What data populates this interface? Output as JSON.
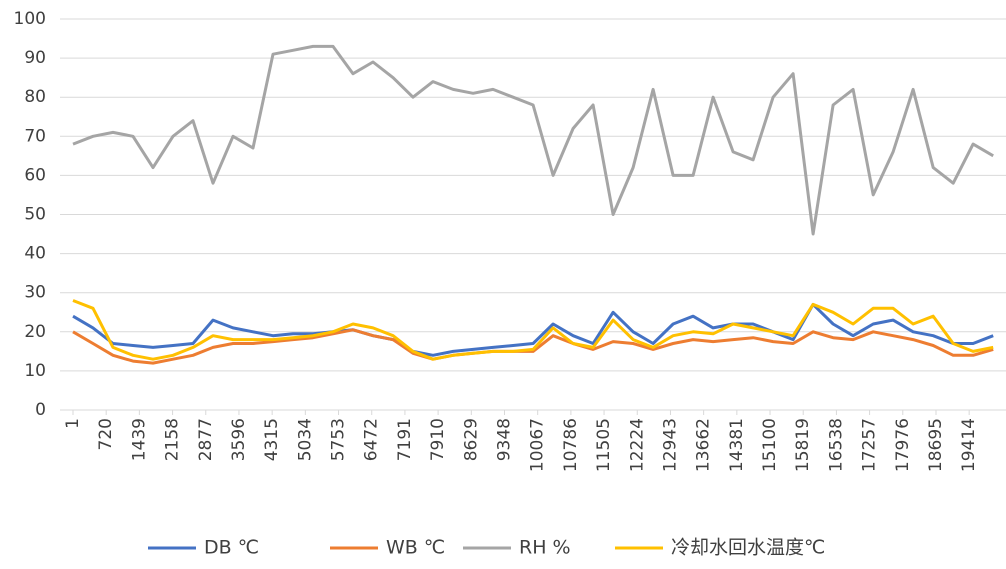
{
  "chart_data": {
    "type": "line",
    "x": [
      1,
      434,
      867,
      1301,
      1734,
      2167,
      2601,
      3034,
      3467,
      3901,
      4334,
      4767,
      5200,
      5634,
      6067,
      6500,
      6934,
      7367,
      7800,
      8234,
      8667,
      9100,
      9534,
      9967,
      10400,
      10834,
      11267,
      11700,
      12134,
      12567,
      13000,
      13434,
      13867,
      14300,
      14734,
      15167,
      15600,
      16034,
      16467,
      16900,
      17334,
      17767,
      18200,
      18634,
      19067,
      19500,
      19934
    ],
    "xlim": [
      1,
      20190
    ],
    "xticks": [
      1,
      720,
      1439,
      2158,
      2877,
      3596,
      4315,
      5034,
      5753,
      6472,
      7191,
      7910,
      8629,
      9348,
      10067,
      10786,
      11505,
      12224,
      12943,
      13662,
      14381,
      15100,
      15819,
      16538,
      17257,
      17976,
      18695,
      19414
    ],
    "ylim": [
      0,
      100
    ],
    "yticks": [
      0,
      10,
      20,
      30,
      40,
      50,
      60,
      70,
      80,
      90,
      100
    ],
    "grid": true,
    "legend": "bottom",
    "series": [
      {
        "name": "DB ℃",
        "color": "#4472c4",
        "values": [
          24,
          21,
          17,
          16.5,
          16,
          16.5,
          17,
          23,
          21,
          20,
          19,
          19.5,
          19.5,
          20,
          20.5,
          19,
          18,
          15,
          14,
          15,
          15.5,
          16,
          16.5,
          17,
          22,
          19,
          17,
          25,
          20,
          17,
          22,
          24,
          21,
          22,
          22,
          20,
          18,
          27,
          22,
          19,
          22,
          23,
          20,
          19,
          17,
          17,
          19
        ]
      },
      {
        "name": "WB ℃",
        "color": "#ed7d31",
        "values": [
          20,
          17,
          14,
          12.5,
          12,
          13,
          14,
          16,
          17,
          17,
          17.5,
          18,
          18.5,
          19.5,
          20.5,
          19,
          18,
          14.5,
          13,
          14,
          14.5,
          15,
          15,
          15,
          19,
          17,
          15.5,
          17.5,
          17,
          15.5,
          17,
          18,
          17.5,
          18,
          18.5,
          17.5,
          17,
          20,
          18.5,
          18,
          20,
          19,
          18,
          16.5,
          14,
          14,
          15.5
        ]
      },
      {
        "name": "RH %",
        "color": "#a5a5a5",
        "values": [
          68,
          70,
          71,
          70,
          62,
          70,
          74,
          58,
          70,
          67,
          91,
          92,
          93,
          93,
          86,
          89,
          85,
          80,
          84,
          82,
          81,
          82,
          80,
          78,
          60,
          72,
          78,
          50,
          62,
          82,
          60,
          60,
          80,
          66,
          64,
          80,
          86,
          45,
          78,
          82,
          55,
          66,
          82,
          62,
          58,
          68,
          65
        ]
      },
      {
        "name": "冷却水回水温度℃",
        "color": "#ffc000",
        "values": [
          28,
          26,
          16,
          14,
          13,
          14,
          16,
          19,
          18,
          18,
          18,
          18.5,
          19,
          20,
          22,
          21,
          19,
          15,
          13,
          14,
          14.5,
          15,
          15,
          15.5,
          21,
          17,
          16,
          23,
          18,
          16,
          19,
          20,
          19.5,
          22,
          21,
          20,
          19,
          27,
          25,
          22,
          26,
          26,
          22,
          24,
          17,
          15,
          16
        ]
      }
    ]
  }
}
